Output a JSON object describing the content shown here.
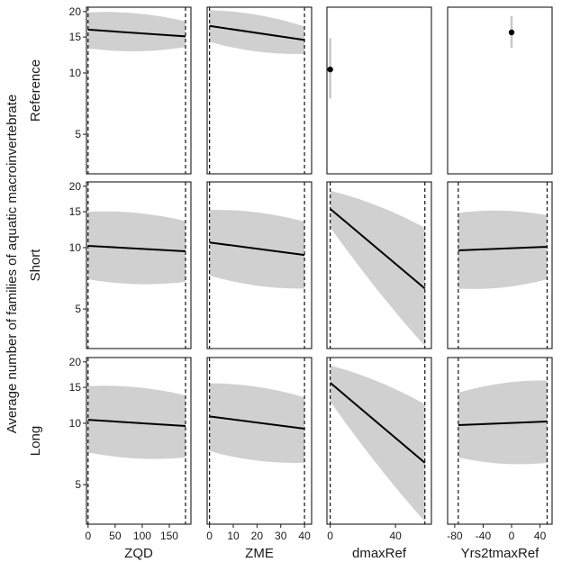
{
  "chart_data": {
    "type": "line",
    "ylabel": "Average number of families of aquatic macroinvertebrate",
    "y_scale": "log",
    "ylim": [
      3.2,
      21
    ],
    "y_ticks": [
      5,
      10,
      15,
      20
    ],
    "rows": [
      "Reference",
      "Short",
      "Long"
    ],
    "columns": [
      {
        "name": "ZQD",
        "xlim": [
          -3,
          190
        ],
        "x_ticks": [
          0,
          50,
          100,
          150
        ],
        "x_ticks_text": [
          "0",
          "50",
          "100",
          "150"
        ],
        "data_range": [
          0,
          180
        ]
      },
      {
        "name": "ZME",
        "xlim": [
          -1,
          43
        ],
        "x_ticks": [
          0,
          10,
          20,
          30,
          40
        ],
        "x_ticks_text": [
          "0",
          "10",
          "20",
          "30",
          "40"
        ],
        "data_range": [
          0,
          40
        ]
      },
      {
        "name": "dmaxRef",
        "xlim": [
          -2,
          62
        ],
        "x_ticks": [
          0,
          40
        ],
        "x_ticks_text": [
          "0",
          "40"
        ],
        "data_range": [
          0,
          58
        ]
      },
      {
        "name": "Yrs2tmaxRef",
        "xlim": [
          -90,
          57
        ],
        "x_ticks": [
          -80,
          -40,
          0,
          40
        ],
        "x_ticks_text": [
          "-80",
          "-40",
          "0",
          "40"
        ],
        "data_range": [
          -75,
          50
        ]
      }
    ],
    "panels": [
      {
        "row": "Reference",
        "column": "ZQD",
        "kind": "trend",
        "x": [
          0,
          180
        ],
        "fit": [
          16.3,
          15.1
        ],
        "lower": [
          13.2,
          13.4
        ],
        "upper": [
          19.8,
          17.9
        ]
      },
      {
        "row": "Reference",
        "column": "ZME",
        "kind": "trend",
        "x": [
          0,
          40
        ],
        "fit": [
          17.0,
          14.5
        ],
        "lower": [
          14.2,
          12.4
        ],
        "upper": [
          20.3,
          16.9
        ]
      },
      {
        "row": "Reference",
        "column": "dmaxRef",
        "kind": "point",
        "x": 0,
        "estimate": 10.4,
        "lower": 7.5,
        "upper": 14.8
      },
      {
        "row": "Reference",
        "column": "Yrs2tmaxRef",
        "kind": "point",
        "x": 0,
        "estimate": 15.8,
        "lower": 13.3,
        "upper": 19.0
      },
      {
        "row": "Short",
        "column": "ZQD",
        "kind": "trend",
        "x": [
          0,
          180
        ],
        "fit": [
          10.2,
          9.6
        ],
        "lower": [
          7.0,
          6.8
        ],
        "upper": [
          15.0,
          13.5
        ]
      },
      {
        "row": "Short",
        "column": "ZME",
        "kind": "trend",
        "x": [
          0,
          40
        ],
        "fit": [
          10.6,
          9.2
        ],
        "lower": [
          7.3,
          6.3
        ],
        "upper": [
          15.3,
          13.4
        ]
      },
      {
        "row": "Short",
        "column": "dmaxRef",
        "kind": "trend",
        "x": [
          0,
          58
        ],
        "fit": [
          15.5,
          6.3
        ],
        "lower": [
          12.6,
          3.3
        ],
        "upper": [
          19.0,
          12.5
        ]
      },
      {
        "row": "Short",
        "column": "Yrs2tmaxRef",
        "kind": "trend",
        "x": [
          -75,
          50
        ],
        "fit": [
          9.7,
          10.1
        ],
        "lower": [
          6.3,
          7.0
        ],
        "upper": [
          14.8,
          14.4
        ]
      },
      {
        "row": "Long",
        "column": "ZQD",
        "kind": "trend",
        "x": [
          0,
          180
        ],
        "fit": [
          10.4,
          9.7
        ],
        "lower": [
          7.2,
          6.8
        ],
        "upper": [
          15.2,
          13.7
        ]
      },
      {
        "row": "Long",
        "column": "ZME",
        "kind": "trend",
        "x": [
          0,
          40
        ],
        "fit": [
          10.8,
          9.4
        ],
        "lower": [
          7.3,
          6.4
        ],
        "upper": [
          15.7,
          13.4
        ]
      },
      {
        "row": "Long",
        "column": "dmaxRef",
        "kind": "trend",
        "x": [
          0,
          58
        ],
        "fit": [
          15.8,
          6.4
        ],
        "lower": [
          12.8,
          3.3
        ],
        "upper": [
          19.2,
          12.4
        ]
      },
      {
        "row": "Long",
        "column": "Yrs2tmaxRef",
        "kind": "trend",
        "x": [
          -75,
          50
        ],
        "fit": [
          9.8,
          10.2
        ],
        "lower": [
          6.8,
          6.4
        ],
        "upper": [
          14.1,
          16.2
        ]
      }
    ],
    "dashed_reference_lines": true,
    "grid": false,
    "legend": "none",
    "colors": {
      "band": "#d0d0d0",
      "line": "#000000",
      "frame": "#1a1a1a",
      "errorbar": "#c8c8c8"
    }
  }
}
